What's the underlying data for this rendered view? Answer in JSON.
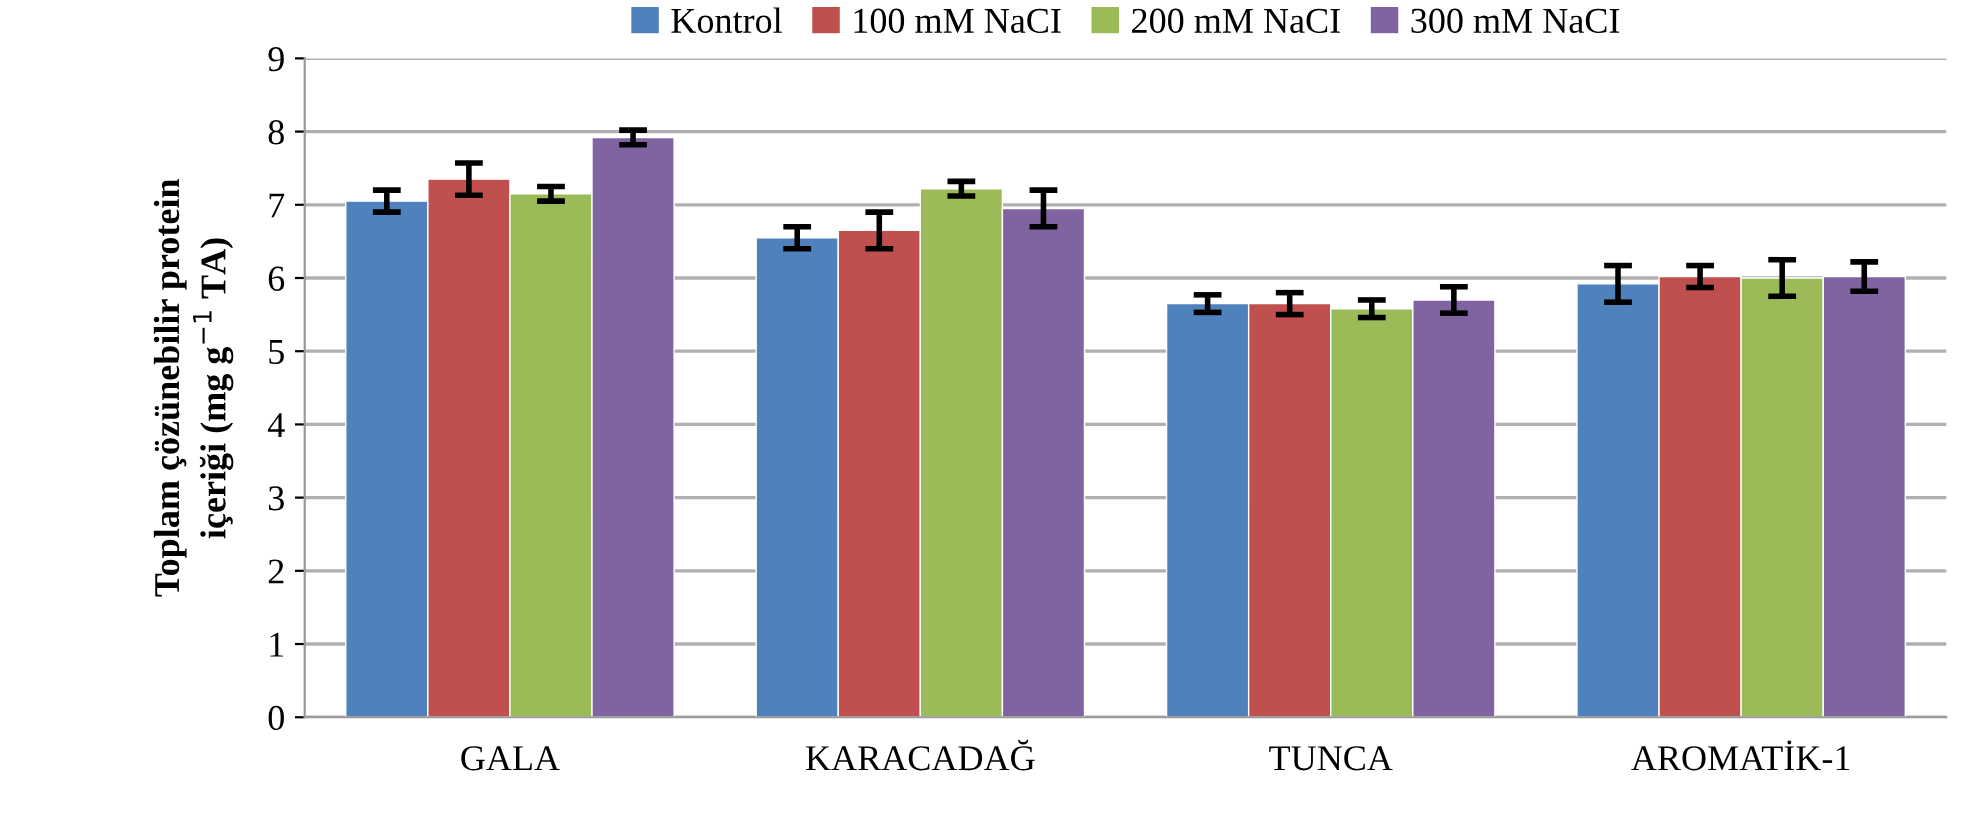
{
  "chart_data": {
    "type": "bar",
    "ylabel": "Toplam çözünebilir protein\niçeriği (mg g$^{−1}$ TA)",
    "categories": [
      "GALA",
      "KARACADAĞ",
      "TUNCA",
      "AROMATİK-1"
    ],
    "series": [
      {
        "name": "Kontrol",
        "color": "#4f81bd",
        "values": [
          7.05,
          6.55,
          5.65,
          5.92
        ],
        "errors": [
          0.15,
          0.15,
          0.12,
          0.25
        ]
      },
      {
        "name": "100 mM NaCI",
        "color": "#c0504d",
        "values": [
          7.35,
          6.65,
          5.65,
          6.02
        ],
        "errors": [
          0.22,
          0.25,
          0.15,
          0.15
        ]
      },
      {
        "name": "200 mM NaCI",
        "color": "#9bbb59",
        "values": [
          7.15,
          7.22,
          5.58,
          6.0
        ],
        "errors": [
          0.1,
          0.1,
          0.12,
          0.25
        ]
      },
      {
        "name": "300 mM NaCI",
        "color": "#8064a2",
        "values": [
          7.92,
          6.95,
          5.7,
          6.02
        ],
        "errors": [
          0.1,
          0.25,
          0.18,
          0.2
        ]
      }
    ],
    "ylim": [
      0,
      9
    ],
    "yticks": [
      0,
      1,
      2,
      3,
      4,
      5,
      6,
      7,
      8,
      9
    ],
    "grid": "y",
    "legend": "top"
  }
}
